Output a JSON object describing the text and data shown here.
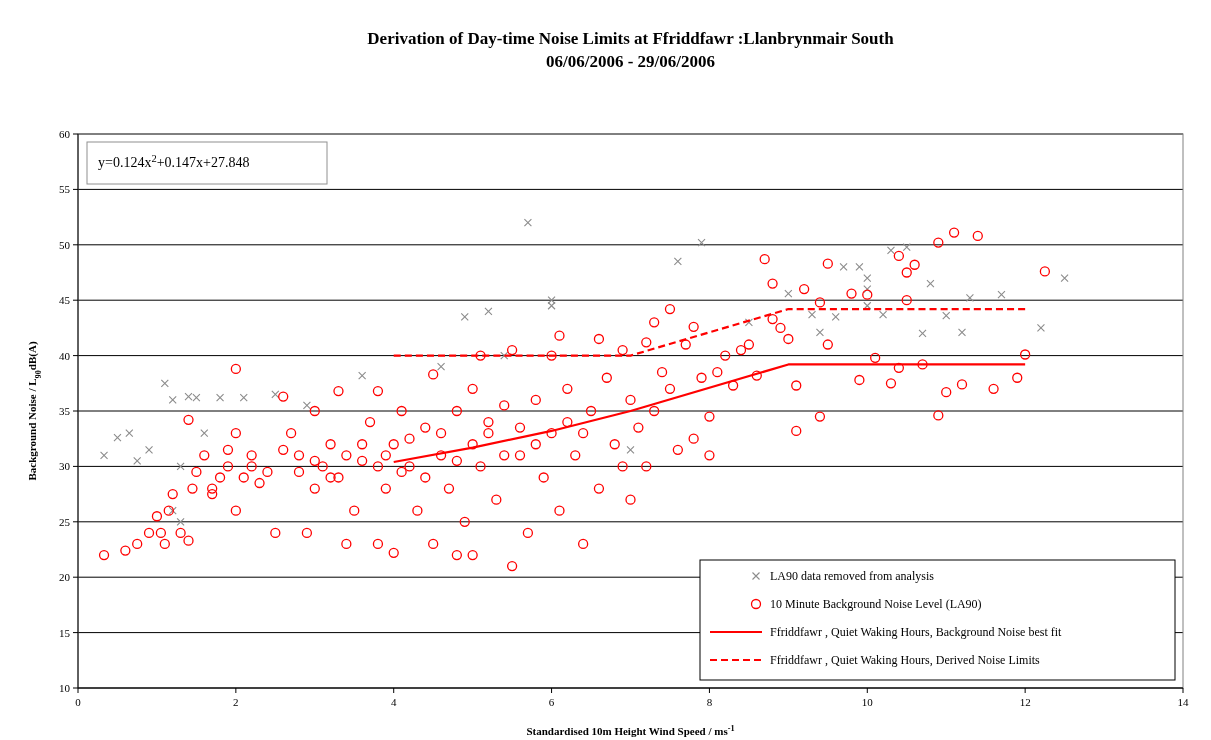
{
  "chart_data": {
    "type": "scatter",
    "title": "Derivation of Day-time Noise Limits at Ffriddfawr :Llanbrynmair South",
    "subtitle": "06/06/2006 - 29/06/2006",
    "xlabel": "Standardised 10m Height Wind Speed / ms$^{-1}$",
    "ylabel": "Background Noise / L$_{90}$dB(A)",
    "annotations": [
      "y=0.124x$^{2}$+0.147x+27.848"
    ],
    "xlim": [
      0,
      14
    ],
    "xticks": [
      0,
      2,
      4,
      6,
      8,
      10,
      12,
      14
    ],
    "ylim": [
      10,
      60
    ],
    "yticks": [
      10,
      15,
      20,
      25,
      30,
      35,
      40,
      45,
      50,
      55,
      60
    ],
    "grid": "y",
    "legend": "bottom right",
    "series": [
      {
        "name": "LA90 data removed from analysis",
        "marker": "cross",
        "color": "#8c8c8c",
        "x": [
          0.33,
          0.5,
          0.65,
          0.75,
          0.9,
          1.1,
          1.2,
          1.3,
          1.4,
          1.5,
          1.2,
          1.3,
          1.6,
          1.8,
          2.1,
          2.5,
          2.9,
          3.6,
          4.6,
          4.9,
          5.2,
          5.4,
          5.7,
          6.0,
          6.0,
          7.0,
          7.6,
          7.9,
          8.5,
          9.0,
          9.3,
          9.4,
          9.6,
          9.7,
          9.9,
          10.0,
          10.0,
          10.0,
          10.2,
          10.3,
          10.5,
          10.7,
          10.8,
          11.0,
          11.2,
          11.3,
          11.7,
          12.2,
          12.5
        ],
        "values": [
          31,
          32.6,
          33,
          30.5,
          31.5,
          37.5,
          36,
          30,
          36.3,
          36.2,
          26,
          25,
          33,
          36.2,
          36.2,
          36.5,
          35.5,
          38.2,
          39,
          43.5,
          44,
          40,
          52,
          44.5,
          45,
          31.5,
          48.5,
          50.2,
          43,
          45.6,
          43.7,
          42.1,
          43.5,
          48,
          48,
          47,
          46,
          44.5,
          43.7,
          49.5,
          49.8,
          42,
          46.5,
          43.6,
          42.1,
          45.2,
          45.5,
          42.5,
          47
        ]
      },
      {
        "name": "10 Minute Background Noise Level (LA90)",
        "marker": "circle",
        "color": "#ff0000",
        "x": [
          0.33,
          0.6,
          0.75,
          0.9,
          1.0,
          1.05,
          1.1,
          1.15,
          1.2,
          1.3,
          1.4,
          1.45,
          1.5,
          1.4,
          1.6,
          1.7,
          1.8,
          1.9,
          2.0,
          2.0,
          2.1,
          2.2,
          2.3,
          2.5,
          2.6,
          2.7,
          2.8,
          2.9,
          3.0,
          3.0,
          3.1,
          3.2,
          3.3,
          3.3,
          3.4,
          3.5,
          3.6,
          3.7,
          3.8,
          3.8,
          3.9,
          4.0,
          4.0,
          4.1,
          4.2,
          4.3,
          4.4,
          4.5,
          4.5,
          4.6,
          4.7,
          4.8,
          4.8,
          4.9,
          5.0,
          5.0,
          5.1,
          5.1,
          5.2,
          5.3,
          5.4,
          5.5,
          5.5,
          5.6,
          5.7,
          5.8,
          5.9,
          6.0,
          6.0,
          6.1,
          6.1,
          6.2,
          6.3,
          6.4,
          6.5,
          6.6,
          6.6,
          6.7,
          6.8,
          6.9,
          6.9,
          7.0,
          7.0,
          7.1,
          7.2,
          7.2,
          7.3,
          7.3,
          7.4,
          7.5,
          7.5,
          7.6,
          7.7,
          7.8,
          7.8,
          7.9,
          8.0,
          8.0,
          8.1,
          8.2,
          8.3,
          8.4,
          8.5,
          8.6,
          8.7,
          8.8,
          8.8,
          8.9,
          9.0,
          9.1,
          9.1,
          9.2,
          9.4,
          9.4,
          9.5,
          9.5,
          9.8,
          9.9,
          10.0,
          10.1,
          10.3,
          10.4,
          10.5,
          10.6,
          10.7,
          10.9,
          10.9,
          11.0,
          11.1,
          11.2,
          11.4,
          11.6,
          11.9,
          12.0,
          12.25,
          10.4,
          10.5,
          2.2,
          2.4,
          2.6,
          2.8,
          3.0,
          3.2,
          3.4,
          3.6,
          3.8,
          4.2,
          4.4,
          4.6,
          4.8,
          5.0,
          5.2,
          5.4,
          5.6,
          5.8,
          6.2,
          6.4,
          1.7,
          1.9,
          2.0,
          3.9,
          4.1
        ],
        "values": [
          22,
          22.4,
          23,
          24,
          25.5,
          24,
          23,
          26,
          27.5,
          24,
          23.3,
          28,
          29.5,
          34.2,
          31,
          27.5,
          29,
          30,
          38.8,
          26,
          29,
          31,
          28.5,
          24,
          36.3,
          33,
          31,
          24,
          35,
          28,
          30,
          32,
          36.8,
          29,
          23,
          26,
          30.5,
          34,
          36.8,
          23,
          28,
          22.2,
          32,
          35,
          30,
          26,
          33.5,
          23,
          38.3,
          31,
          28,
          35,
          22,
          25,
          22,
          37,
          40,
          30,
          33,
          27,
          35.5,
          21,
          40.5,
          31,
          24,
          36,
          29,
          40,
          33,
          41.8,
          26,
          37,
          31,
          23,
          35,
          41.5,
          28,
          38,
          32,
          40.5,
          30,
          36,
          27,
          33.5,
          41.2,
          30,
          43,
          35,
          38.5,
          44.2,
          37,
          31.5,
          41,
          42.6,
          32.5,
          38,
          34.5,
          31,
          38.5,
          40,
          37.3,
          40.5,
          41,
          38.2,
          48.7,
          46.5,
          43.3,
          42.5,
          41.5,
          37.3,
          33.2,
          46,
          44.8,
          34.5,
          41,
          48.3,
          45.6,
          37.8,
          45.5,
          39.8,
          37.5,
          38.9,
          45,
          48.2,
          39.2,
          50.2,
          34.6,
          36.7,
          51.1,
          37.4,
          50.8,
          37,
          38,
          40.1,
          47.6,
          49,
          47.5,
          30,
          29.5,
          31.5,
          29.5,
          30.5,
          29,
          31,
          32,
          30,
          32.5,
          29,
          33,
          30.5,
          32,
          34,
          31,
          33.5,
          32,
          34,
          33,
          28,
          31.5,
          33,
          31,
          29.5
        ]
      },
      {
        "name": "Ffriddfawr , Quiet Waking Hours, Background Noise best fit",
        "type": "line",
        "marker": "none",
        "line_style": "solid",
        "color": "#ff0000",
        "x": [
          4,
          5,
          6,
          7,
          9,
          12
        ],
        "values": [
          30.4,
          31.7,
          33.2,
          35,
          39.2,
          39.2
        ]
      },
      {
        "name": "Ffriddfawr , Quiet Waking Hours, Derived Noise Limits",
        "type": "line",
        "marker": "none",
        "line_style": "dashed",
        "color": "#ff0000",
        "x": [
          4,
          7,
          9,
          12
        ],
        "values": [
          40,
          40,
          44.2,
          44.2
        ]
      }
    ]
  }
}
